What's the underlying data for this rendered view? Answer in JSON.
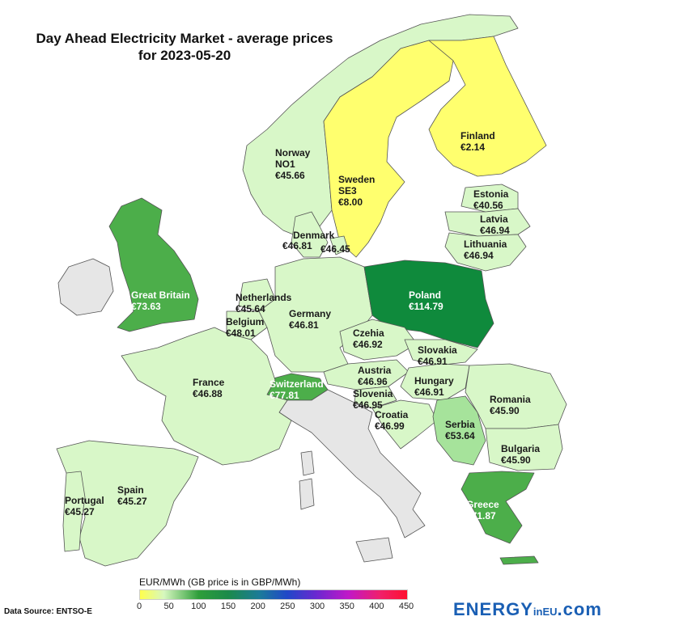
{
  "title_line1": "Day Ahead Electricity Market - average prices",
  "title_line2": "for 2023-05-20",
  "legend": {
    "title": "EUR/MWh (GB price is in GBP/MWh)",
    "ticks": [
      "0",
      "50",
      "100",
      "150",
      "200",
      "250",
      "300",
      "350",
      "400",
      "450"
    ]
  },
  "source": "Data Source: ENTSO-E",
  "brand": {
    "main": "ENERGY",
    "mid": "inEU",
    "suffix": ".com"
  },
  "colors": {
    "very_low": "#ffff6e",
    "low": "#d8f7c8",
    "mid_low": "#a6e39b",
    "mid": "#4cae4a",
    "high": "#0f8a3c",
    "no_data": "#e6e6e6",
    "border": "#555555"
  },
  "regions": {
    "norway": {
      "name": "Norway",
      "zone": "NO1",
      "price": "€45.66"
    },
    "sweden": {
      "name": "Sweden",
      "zone": "SE3",
      "price": "€8.00"
    },
    "finland": {
      "name": "Finland",
      "price": "€2.14"
    },
    "estonia": {
      "name": "Estonia",
      "price": "€40.56"
    },
    "latvia": {
      "name": "Latvia",
      "price": "€46.94"
    },
    "lithuania": {
      "name": "Lithuania",
      "price": "€46.94"
    },
    "denmark": {
      "name": "Denmark",
      "price_west": "€46.81",
      "price_east": "€46.45"
    },
    "great_britain": {
      "name": "Great Britain",
      "price": "€73.63"
    },
    "netherlands": {
      "name": "Netherlands",
      "price": "€45.64"
    },
    "belgium": {
      "name": "Belgium",
      "price": "€48.01"
    },
    "germany": {
      "name": "Germany",
      "price": "€46.81"
    },
    "poland": {
      "name": "Poland",
      "price": "€114.79"
    },
    "czechia": {
      "name": "Czehia",
      "price": "€46.92"
    },
    "slovakia": {
      "name": "Slovakia",
      "price": "€46.91"
    },
    "austria": {
      "name": "Austria",
      "price": "€46.96"
    },
    "hungary": {
      "name": "Hungary",
      "price": "€46.91"
    },
    "slovenia": {
      "name": "Slovenia",
      "price": "€46.95"
    },
    "croatia": {
      "name": "Croatia",
      "price": "€46.99"
    },
    "france": {
      "name": "France",
      "price": "€46.88"
    },
    "switzerland": {
      "name": "Switzerland",
      "price": "€77.81"
    },
    "romania": {
      "name": "Romania",
      "price": "€45.90"
    },
    "serbia": {
      "name": "Serbia",
      "price": "€53.64"
    },
    "bulgaria": {
      "name": "Bulgaria",
      "price": "€45.90"
    },
    "greece": {
      "name": "Greece",
      "price": "€71.87"
    },
    "spain": {
      "name": "Spain",
      "price": "€45.27"
    },
    "portugal": {
      "name": "Portugal",
      "price": "€45.27"
    }
  }
}
